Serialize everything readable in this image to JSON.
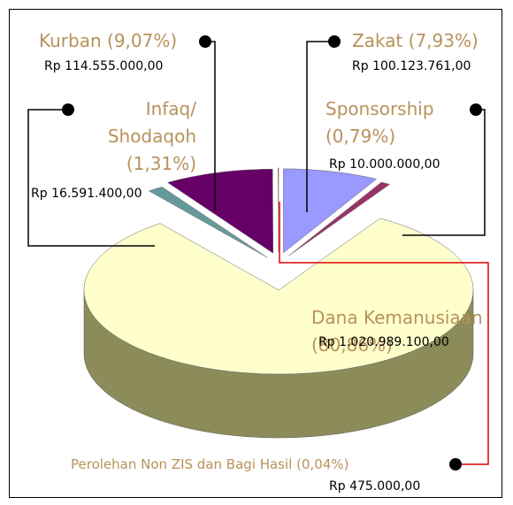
{
  "chart_data": {
    "type": "pie",
    "categories": [
      "Zakat",
      "Sponsorship",
      "Dana Kemanusiaan",
      "Infaq/ Shodaqoh",
      "Kurban",
      "Perolehan Non ZIS dan Bagi Hasil"
    ],
    "values": [
      7.93,
      0.79,
      80.86,
      1.31,
      9.07,
      0.04
    ],
    "value_labels": [
      "(7,93%)",
      "(0,79%)",
      "(80,86%)",
      "(1,31%)",
      "(9,07%)",
      "(0,04%)"
    ],
    "amounts": [
      100123761,
      10000000,
      1020989100,
      16591400,
      114555000,
      475000
    ],
    "amount_labels": [
      "Rp 100.123.761,00",
      "Rp 10.000.000,00",
      "Rp 1.020.989.100,00",
      "Rp 16.591.400,00",
      "Rp 114.555.000,00",
      "Rp 475.000,00"
    ],
    "colors": [
      "#9999ff",
      "#993366",
      "#ffffcc",
      "#669999",
      "#660066",
      "#ff0000"
    ],
    "side_colors": [
      "#6666aa",
      "#662244",
      "#8c8c5a",
      "#446666",
      "#440044",
      "#aa0000"
    ]
  }
}
